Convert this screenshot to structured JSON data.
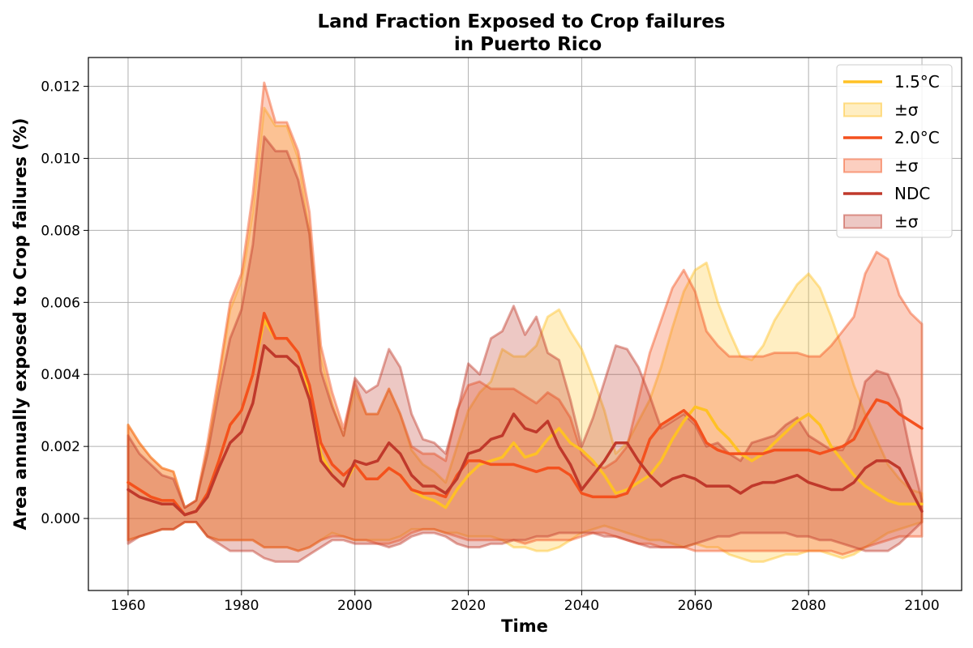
{
  "chart_data": {
    "type": "line",
    "title": "Land Fraction Exposed to Crop failures",
    "subtitle": "in Puerto Rico",
    "xlabel": "Time",
    "ylabel": "Area annually exposed to Crop failures (%)",
    "xlim": [
      1953,
      2107
    ],
    "ylim": [
      -0.002,
      0.0128
    ],
    "xticks": [
      1960,
      1980,
      2000,
      2020,
      2040,
      2060,
      2080,
      2100
    ],
    "xtick_labels": [
      "1960",
      "1980",
      "2000",
      "2020",
      "2040",
      "2060",
      "2080",
      "2100"
    ],
    "yticks": [
      0,
      0.002,
      0.004,
      0.006,
      0.008,
      0.01,
      0.012
    ],
    "ytick_labels": [
      "0.000",
      "0.002",
      "0.004",
      "0.006",
      "0.008",
      "0.010",
      "0.012"
    ],
    "grid": true,
    "legend_position": "top-right",
    "series": [
      {
        "name": "1.5°C",
        "band_label": "±σ",
        "color": "#ffc125",
        "x": [
          1960,
          1962,
          1964,
          1966,
          1968,
          1970,
          1972,
          1974,
          1976,
          1978,
          1980,
          1982,
          1984,
          1986,
          1988,
          1990,
          1992,
          1994,
          1996,
          1998,
          2000,
          2002,
          2004,
          2006,
          2008,
          2010,
          2012,
          2014,
          2016,
          2018,
          2020,
          2022,
          2024,
          2026,
          2028,
          2030,
          2032,
          2034,
          2036,
          2038,
          2040,
          2042,
          2044,
          2046,
          2048,
          2050,
          2052,
          2054,
          2056,
          2058,
          2060,
          2062,
          2064,
          2066,
          2068,
          2070,
          2072,
          2074,
          2076,
          2078,
          2080,
          2082,
          2084,
          2086,
          2088,
          2090,
          2092,
          2094,
          2096,
          2098,
          2100
        ],
        "mean": [
          0.001,
          0.0008,
          0.0006,
          0.0005,
          0.0005,
          0.0001,
          0.0002,
          0.0007,
          0.0016,
          0.0026,
          0.003,
          0.004,
          0.0055,
          0.005,
          0.005,
          0.0046,
          0.0035,
          0.0018,
          0.0012,
          0.0009,
          0.0015,
          0.0011,
          0.0011,
          0.0014,
          0.0012,
          0.0008,
          0.0006,
          0.0005,
          0.0003,
          0.0008,
          0.0012,
          0.0015,
          0.0016,
          0.0017,
          0.0021,
          0.0017,
          0.0018,
          0.0022,
          0.0025,
          0.0021,
          0.0019,
          0.0016,
          0.0012,
          0.0007,
          0.0008,
          0.001,
          0.0012,
          0.0016,
          0.0022,
          0.0027,
          0.0031,
          0.003,
          0.0025,
          0.0022,
          0.0018,
          0.0016,
          0.0018,
          0.0021,
          0.0024,
          0.0027,
          0.0029,
          0.0026,
          0.002,
          0.0016,
          0.0012,
          0.0009,
          0.0007,
          0.0005,
          0.0004,
          0.0004,
          0.0004
        ],
        "lower": [
          -0.0006,
          -0.0005,
          -0.0004,
          -0.0003,
          -0.0003,
          -0.0001,
          -0.0001,
          -0.0005,
          -0.0006,
          -0.0006,
          -0.0006,
          -0.0006,
          -0.0008,
          -0.0008,
          -0.0008,
          -0.0009,
          -0.0008,
          -0.0006,
          -0.0004,
          -0.0005,
          -0.0006,
          -0.0006,
          -0.0006,
          -0.0006,
          -0.0005,
          -0.0003,
          -0.0003,
          -0.0003,
          -0.0004,
          -0.0004,
          -0.0005,
          -0.0005,
          -0.0005,
          -0.0006,
          -0.0008,
          -0.0008,
          -0.0009,
          -0.0009,
          -0.0008,
          -0.0006,
          -0.0004,
          -0.0003,
          -0.0002,
          -0.0003,
          -0.0004,
          -0.0005,
          -0.0006,
          -0.0006,
          -0.0007,
          -0.0008,
          -0.0007,
          -0.0008,
          -0.0008,
          -0.001,
          -0.0011,
          -0.0012,
          -0.0012,
          -0.0011,
          -0.001,
          -0.001,
          -0.0009,
          -0.0009,
          -0.001,
          -0.0011,
          -0.001,
          -0.0008,
          -0.0006,
          -0.0004,
          -0.0003,
          -0.0002,
          -0.0001
        ],
        "upper": [
          0.0026,
          0.0021,
          0.0017,
          0.0014,
          0.0013,
          0.0003,
          0.0005,
          0.0019,
          0.0038,
          0.0058,
          0.0066,
          0.0085,
          0.0114,
          0.0109,
          0.0109,
          0.01,
          0.008,
          0.0045,
          0.0032,
          0.0023,
          0.0036,
          0.0029,
          0.0029,
          0.0036,
          0.0029,
          0.0019,
          0.0015,
          0.0013,
          0.001,
          0.002,
          0.003,
          0.0035,
          0.0038,
          0.0047,
          0.0045,
          0.0045,
          0.0048,
          0.0056,
          0.0058,
          0.0052,
          0.0047,
          0.0039,
          0.003,
          0.0018,
          0.0021,
          0.0027,
          0.0033,
          0.0042,
          0.0053,
          0.0063,
          0.0069,
          0.0071,
          0.006,
          0.0052,
          0.0045,
          0.0044,
          0.0048,
          0.0055,
          0.006,
          0.0065,
          0.0068,
          0.0064,
          0.0056,
          0.0047,
          0.0037,
          0.0029,
          0.0022,
          0.0015,
          0.0011,
          0.0008,
          0.0007
        ]
      },
      {
        "name": "2.0°C",
        "band_label": "±σ",
        "color": "#f4511e",
        "x": [
          1960,
          1962,
          1964,
          1966,
          1968,
          1970,
          1972,
          1974,
          1976,
          1978,
          1980,
          1982,
          1984,
          1986,
          1988,
          1990,
          1992,
          1994,
          1996,
          1998,
          2000,
          2002,
          2004,
          2006,
          2008,
          2010,
          2012,
          2014,
          2016,
          2018,
          2020,
          2022,
          2024,
          2026,
          2028,
          2030,
          2032,
          2034,
          2036,
          2038,
          2040,
          2042,
          2044,
          2046,
          2048,
          2050,
          2052,
          2054,
          2056,
          2058,
          2060,
          2062,
          2064,
          2066,
          2068,
          2070,
          2072,
          2074,
          2076,
          2078,
          2080,
          2082,
          2084,
          2086,
          2088,
          2090,
          2092,
          2094,
          2096,
          2098,
          2100
        ],
        "mean": [
          0.001,
          0.0008,
          0.0006,
          0.0005,
          0.0005,
          0.0001,
          0.0002,
          0.0007,
          0.0016,
          0.0026,
          0.003,
          0.004,
          0.0057,
          0.005,
          0.005,
          0.0046,
          0.0037,
          0.0021,
          0.0015,
          0.0012,
          0.0015,
          0.0011,
          0.0011,
          0.0014,
          0.0012,
          0.0008,
          0.0007,
          0.0007,
          0.0006,
          0.0012,
          0.0016,
          0.0016,
          0.0015,
          0.0015,
          0.0015,
          0.0014,
          0.0013,
          0.0014,
          0.0014,
          0.0012,
          0.0007,
          0.0006,
          0.0006,
          0.0006,
          0.0007,
          0.0013,
          0.0022,
          0.0026,
          0.0028,
          0.003,
          0.0027,
          0.0021,
          0.0019,
          0.0018,
          0.0018,
          0.0018,
          0.0018,
          0.0019,
          0.0019,
          0.0019,
          0.0019,
          0.0018,
          0.0019,
          0.002,
          0.0022,
          0.0028,
          0.0033,
          0.0032,
          0.0029,
          0.0027,
          0.0025
        ],
        "lower": [
          -0.0006,
          -0.0005,
          -0.0004,
          -0.0003,
          -0.0003,
          -0.0001,
          -0.0001,
          -0.0005,
          -0.0006,
          -0.0006,
          -0.0006,
          -0.0006,
          -0.0008,
          -0.0008,
          -0.0008,
          -0.0009,
          -0.0008,
          -0.0006,
          -0.0005,
          -0.0005,
          -0.0006,
          -0.0006,
          -0.0007,
          -0.0007,
          -0.0006,
          -0.0004,
          -0.0003,
          -0.0003,
          -0.0004,
          -0.0005,
          -0.0006,
          -0.0006,
          -0.0006,
          -0.0006,
          -0.0006,
          -0.0007,
          -0.0006,
          -0.0006,
          -0.0006,
          -0.0006,
          -0.0005,
          -0.0004,
          -0.0004,
          -0.0005,
          -0.0006,
          -0.0007,
          -0.0007,
          -0.0008,
          -0.0008,
          -0.0008,
          -0.0009,
          -0.0009,
          -0.0009,
          -0.0009,
          -0.0009,
          -0.0009,
          -0.0009,
          -0.0009,
          -0.0009,
          -0.0009,
          -0.0009,
          -0.0009,
          -0.0009,
          -0.001,
          -0.0009,
          -0.0008,
          -0.0007,
          -0.0006,
          -0.0005,
          -0.0005,
          -0.0005
        ],
        "upper": [
          0.0026,
          0.0021,
          0.0017,
          0.0014,
          0.0013,
          0.0003,
          0.0005,
          0.0021,
          0.004,
          0.006,
          0.0068,
          0.009,
          0.0121,
          0.011,
          0.011,
          0.0102,
          0.0085,
          0.0048,
          0.0035,
          0.0025,
          0.0038,
          0.0029,
          0.0029,
          0.0036,
          0.0029,
          0.002,
          0.0018,
          0.0018,
          0.0016,
          0.003,
          0.0037,
          0.0038,
          0.0036,
          0.0036,
          0.0036,
          0.0034,
          0.0032,
          0.0035,
          0.0033,
          0.0028,
          0.0018,
          0.0015,
          0.0014,
          0.0016,
          0.002,
          0.0033,
          0.0046,
          0.0055,
          0.0064,
          0.0069,
          0.0063,
          0.0052,
          0.0048,
          0.0045,
          0.0045,
          0.0045,
          0.0045,
          0.0046,
          0.0046,
          0.0046,
          0.0045,
          0.0045,
          0.0048,
          0.0052,
          0.0056,
          0.0068,
          0.0074,
          0.0072,
          0.0062,
          0.0057,
          0.0054
        ]
      },
      {
        "name": "NDC",
        "band_label": "±σ",
        "color": "#c0392b",
        "x": [
          1960,
          1962,
          1964,
          1966,
          1968,
          1970,
          1972,
          1974,
          1976,
          1978,
          1980,
          1982,
          1984,
          1986,
          1988,
          1990,
          1992,
          1994,
          1996,
          1998,
          2000,
          2002,
          2004,
          2006,
          2008,
          2010,
          2012,
          2014,
          2016,
          2018,
          2020,
          2022,
          2024,
          2026,
          2028,
          2030,
          2032,
          2034,
          2036,
          2038,
          2040,
          2042,
          2044,
          2046,
          2048,
          2050,
          2052,
          2054,
          2056,
          2058,
          2060,
          2062,
          2064,
          2066,
          2068,
          2070,
          2072,
          2074,
          2076,
          2078,
          2080,
          2082,
          2084,
          2086,
          2088,
          2090,
          2092,
          2094,
          2096,
          2098,
          2100
        ],
        "mean": [
          0.0008,
          0.0006,
          0.0005,
          0.0004,
          0.0004,
          0.0001,
          0.0002,
          0.0006,
          0.0014,
          0.0021,
          0.0024,
          0.0032,
          0.0048,
          0.0045,
          0.0045,
          0.0042,
          0.0033,
          0.0016,
          0.0012,
          0.0009,
          0.0016,
          0.0015,
          0.0016,
          0.0021,
          0.0018,
          0.0012,
          0.0009,
          0.0009,
          0.0007,
          0.0011,
          0.0018,
          0.0019,
          0.0022,
          0.0023,
          0.0029,
          0.0025,
          0.0024,
          0.0027,
          0.002,
          0.0015,
          0.0008,
          0.0012,
          0.0016,
          0.0021,
          0.0021,
          0.0016,
          0.0012,
          0.0009,
          0.0011,
          0.0012,
          0.0011,
          0.0009,
          0.0009,
          0.0009,
          0.0007,
          0.0009,
          0.001,
          0.001,
          0.0011,
          0.0012,
          0.001,
          0.0009,
          0.0008,
          0.0008,
          0.001,
          0.0014,
          0.0016,
          0.0016,
          0.0014,
          0.0008,
          0.0002
        ],
        "lower": [
          -0.0007,
          -0.0005,
          -0.0004,
          -0.0003,
          -0.0003,
          -0.0001,
          -0.0001,
          -0.0005,
          -0.0007,
          -0.0009,
          -0.0009,
          -0.0009,
          -0.0011,
          -0.0012,
          -0.0012,
          -0.0012,
          -0.001,
          -0.0008,
          -0.0006,
          -0.0006,
          -0.0007,
          -0.0007,
          -0.0007,
          -0.0008,
          -0.0007,
          -0.0005,
          -0.0004,
          -0.0004,
          -0.0005,
          -0.0007,
          -0.0008,
          -0.0008,
          -0.0007,
          -0.0007,
          -0.0006,
          -0.0006,
          -0.0005,
          -0.0005,
          -0.0004,
          -0.0004,
          -0.0004,
          -0.0004,
          -0.0005,
          -0.0005,
          -0.0006,
          -0.0007,
          -0.0008,
          -0.0008,
          -0.0008,
          -0.0008,
          -0.0007,
          -0.0006,
          -0.0005,
          -0.0005,
          -0.0004,
          -0.0004,
          -0.0004,
          -0.0004,
          -0.0004,
          -0.0005,
          -0.0005,
          -0.0006,
          -0.0006,
          -0.0007,
          -0.0008,
          -0.0009,
          -0.0009,
          -0.0009,
          -0.0007,
          -0.0004,
          -0.0001
        ],
        "upper": [
          0.0023,
          0.0018,
          0.0015,
          0.0012,
          0.0011,
          0.0003,
          0.0005,
          0.0018,
          0.0035,
          0.005,
          0.0058,
          0.0076,
          0.0106,
          0.0102,
          0.0102,
          0.0094,
          0.0079,
          0.0041,
          0.0031,
          0.0023,
          0.0039,
          0.0035,
          0.0037,
          0.0047,
          0.0042,
          0.0029,
          0.0022,
          0.0021,
          0.0018,
          0.0029,
          0.0043,
          0.004,
          0.005,
          0.0052,
          0.0059,
          0.0051,
          0.0056,
          0.0046,
          0.0044,
          0.0033,
          0.002,
          0.0028,
          0.0038,
          0.0048,
          0.0047,
          0.0042,
          0.0034,
          0.0025,
          0.0027,
          0.0029,
          0.0026,
          0.002,
          0.0021,
          0.0018,
          0.0016,
          0.0021,
          0.0022,
          0.0023,
          0.0026,
          0.0028,
          0.0023,
          0.0021,
          0.0019,
          0.0019,
          0.0025,
          0.0038,
          0.0041,
          0.004,
          0.0033,
          0.0018,
          0.0005
        ]
      }
    ]
  }
}
